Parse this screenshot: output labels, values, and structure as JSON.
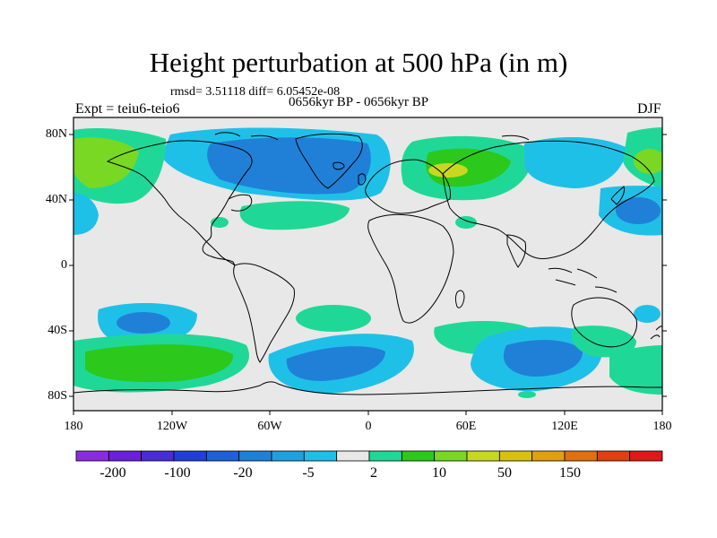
{
  "title": "Height perturbation at 500 hPa (in m)",
  "stats": "rmsd= 3.51118 diff= 6.05452e-08",
  "period": "0656kyr BP - 0656kyr BP",
  "experiment": "Expt = teiu6-teio6",
  "season": "DJF",
  "lat_labels": [
    "80N",
    "40N",
    "0",
    "40S",
    "80S"
  ],
  "lon_labels": [
    "180",
    "120W",
    "60W",
    "0",
    "60E",
    "120E",
    "180"
  ],
  "colorbar": {
    "colors": [
      "#8a2be2",
      "#6a1fd8",
      "#4a2bd8",
      "#1f3fd8",
      "#1f60d8",
      "#2080d8",
      "#1fa0e0",
      "#1fc0e8",
      "#e8e8e8",
      "#1fd898",
      "#2cc81c",
      "#78d824",
      "#c8d820",
      "#d8c010",
      "#e0a010",
      "#e07010",
      "#e04010",
      "#e01818"
    ],
    "labels": [
      "-200",
      "-100",
      "-20",
      "-5",
      "2",
      "10",
      "50",
      "150"
    ]
  },
  "colors": {
    "land_background": "#e8e8e8",
    "coastline": "#000000"
  }
}
